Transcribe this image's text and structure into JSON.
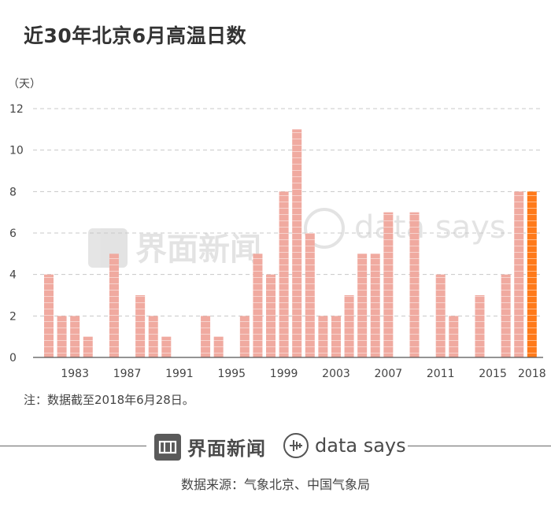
{
  "title": "近30年北京6月高温日数",
  "footnote": "注：数据截至2018年6月28日。",
  "source": "数据来源：气象北京、中国气象局",
  "brand_name": "界面新闻",
  "ds_name": "data says",
  "watermark_brand": "界面新闻",
  "watermark_ds": "data says",
  "colors": {
    "bar": "#f0aaa0",
    "highlight": "#ff7a1a",
    "grid": "#c8c8c8",
    "axis": "#555555",
    "text": "#333333"
  },
  "chart_data": {
    "type": "bar",
    "title": "近30年北京6月高温日数",
    "ylabel": "（天）",
    "xlabel": "",
    "ylim": [
      0,
      12
    ],
    "yticks": [
      0,
      2,
      4,
      6,
      8,
      10,
      12
    ],
    "x": [
      1981,
      1982,
      1983,
      1984,
      1985,
      1986,
      1987,
      1988,
      1989,
      1990,
      1991,
      1992,
      1993,
      1994,
      1995,
      1996,
      1997,
      1998,
      1999,
      2000,
      2001,
      2002,
      2003,
      2004,
      2005,
      2006,
      2007,
      2008,
      2009,
      2010,
      2011,
      2012,
      2013,
      2014,
      2015,
      2016,
      2017,
      2018
    ],
    "values": [
      4,
      2,
      2,
      1,
      0,
      5,
      0,
      3,
      2,
      1,
      0,
      0,
      2,
      1,
      0,
      2,
      5,
      4,
      8,
      11,
      6,
      2,
      2,
      3,
      5,
      5,
      7,
      0,
      7,
      0,
      4,
      2,
      0,
      3,
      0,
      4,
      8,
      8
    ],
    "highlight": [
      2018
    ],
    "xtick_labels": [
      "1983",
      "1987",
      "1991",
      "1995",
      "1999",
      "2003",
      "2007",
      "2011",
      "2015",
      "2018"
    ],
    "grid": true
  }
}
